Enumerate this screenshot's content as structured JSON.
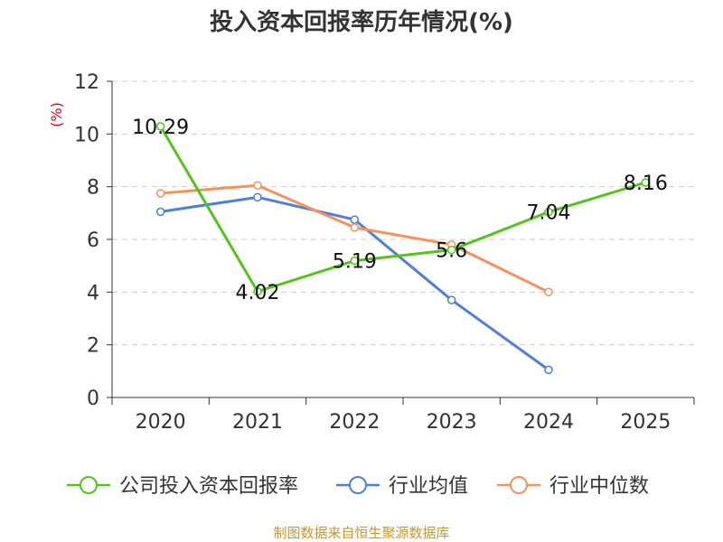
{
  "chart_data": {
    "type": "line",
    "title": "投入资本回报率历年情况(%)",
    "ylabel": "(%)",
    "xlabel": "",
    "categories": [
      "2020",
      "2021",
      "2022",
      "2023",
      "2024",
      "2025"
    ],
    "yticks": [
      0,
      2,
      4,
      6,
      8,
      10,
      12
    ],
    "ylim": [
      0,
      12
    ],
    "grid": true,
    "legend_position": "bottom",
    "series": [
      {
        "name": "公司投入资本回报率",
        "color": "#52c41a",
        "values": [
          10.29,
          4.02,
          5.19,
          5.6,
          7.04,
          8.16
        ],
        "labels": [
          "10.29",
          "4.02",
          "5.19",
          "5.6",
          "7.04",
          "8.16"
        ]
      },
      {
        "name": "行业均值",
        "color": "#4e7fdb",
        "values": [
          7.05,
          7.6,
          6.75,
          3.7,
          1.05,
          null
        ]
      },
      {
        "name": "行业中位数",
        "color": "#f5915a",
        "values": [
          7.75,
          8.05,
          6.45,
          5.8,
          4.0,
          null
        ]
      }
    ],
    "source": "制图数据来自恒生聚源数据库"
  }
}
